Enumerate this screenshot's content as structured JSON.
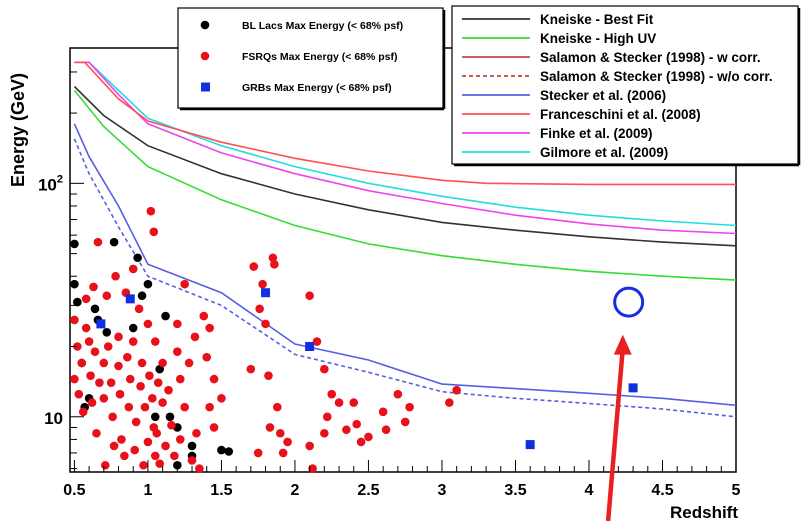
{
  "chart_data": {
    "type": "scatter",
    "xlabel": "Redshift",
    "ylabel": "Energy (GeV)",
    "xlim": [
      0.47,
      5.0
    ],
    "ylim": [
      5.8,
      380
    ],
    "y_scale": "log",
    "x_ticks": [
      "0.5",
      "1",
      "1.5",
      "2",
      "2.5",
      "3",
      "3.5",
      "4",
      "4.5",
      "5"
    ],
    "x_tick_values": [
      0.5,
      1,
      1.5,
      2,
      2.5,
      3,
      3.5,
      4,
      4.5,
      5
    ],
    "y_ticks": [
      {
        "value": 10,
        "base": "10",
        "exp": ""
      },
      {
        "value": 100,
        "base": "10",
        "exp": "2"
      }
    ],
    "point_legend": {
      "placement": "top-left",
      "entries": [
        {
          "label": "BL Lacs Max Energy (< 68% psf)",
          "marker": "circle",
          "color": "#000000"
        },
        {
          "label": "FSRQs Max Energy (< 68% psf)",
          "marker": "circle",
          "color": "#e8101a"
        },
        {
          "label": "GRBs Max Energy (< 68% psf)",
          "marker": "square",
          "color": "#1030e0"
        }
      ]
    },
    "line_legend": {
      "placement": "top-right",
      "entries": [
        {
          "label": "Kneiske - Best Fit",
          "color": "#333333",
          "dash": "solid"
        },
        {
          "label": "Kneiske - High UV",
          "color": "#33dd33",
          "dash": "solid"
        },
        {
          "label": "Salamon & Stecker (1998) - w corr.",
          "color": "#c04848",
          "dash": "solid"
        },
        {
          "label": "Salamon & Stecker (1998) - w/o corr.",
          "color": "#c04848",
          "dash": "dashed"
        },
        {
          "label": "Stecker et al. (2006)",
          "color": "#5560e0",
          "dash": "solid"
        },
        {
          "label": "Franceschini et al. (2008)",
          "color": "#ff5050",
          "dash": "solid"
        },
        {
          "label": "Finke et al. (2009)",
          "color": "#ee44ee",
          "dash": "solid"
        },
        {
          "label": "Gilmore et al. (2009)",
          "color": "#22dddd",
          "dash": "solid"
        }
      ]
    },
    "curves": [
      {
        "color": "#22dddd",
        "dash": "solid",
        "points": [
          [
            0.5,
            330
          ],
          [
            0.6,
            330
          ],
          [
            0.8,
            250
          ],
          [
            1.0,
            190
          ],
          [
            1.5,
            145
          ],
          [
            2.0,
            118
          ],
          [
            2.5,
            100
          ],
          [
            3.0,
            88
          ],
          [
            3.5,
            79
          ],
          [
            4.0,
            73
          ],
          [
            4.5,
            69
          ],
          [
            5.0,
            66
          ]
        ]
      },
      {
        "color": "#ee44ee",
        "dash": "solid",
        "points": [
          [
            0.5,
            330
          ],
          [
            0.6,
            330
          ],
          [
            0.8,
            240
          ],
          [
            1.0,
            180
          ],
          [
            1.5,
            135
          ],
          [
            2.0,
            110
          ],
          [
            2.5,
            93
          ],
          [
            3.0,
            82
          ],
          [
            3.5,
            73
          ],
          [
            4.0,
            67
          ],
          [
            4.5,
            63
          ],
          [
            5.0,
            61
          ]
        ]
      },
      {
        "color": "#ff5050",
        "dash": "solid",
        "points": [
          [
            0.5,
            330
          ],
          [
            0.57,
            330
          ],
          [
            0.8,
            230
          ],
          [
            1.0,
            185
          ],
          [
            1.5,
            150
          ],
          [
            2.0,
            128
          ],
          [
            2.5,
            113
          ],
          [
            3.0,
            103
          ],
          [
            3.3,
            100
          ],
          [
            4.0,
            99
          ],
          [
            5.0,
            99
          ]
        ]
      },
      {
        "color": "#333333",
        "dash": "solid",
        "points": [
          [
            0.5,
            260
          ],
          [
            0.7,
            195
          ],
          [
            1.0,
            145
          ],
          [
            1.5,
            110
          ],
          [
            2.0,
            90
          ],
          [
            2.5,
            77
          ],
          [
            3.0,
            68
          ],
          [
            3.5,
            63
          ],
          [
            4.0,
            59
          ],
          [
            4.5,
            56
          ],
          [
            5.0,
            54
          ]
        ]
      },
      {
        "color": "#33dd33",
        "dash": "solid",
        "points": [
          [
            0.5,
            250
          ],
          [
            0.7,
            175
          ],
          [
            1.0,
            118
          ],
          [
            1.5,
            85
          ],
          [
            2.0,
            66
          ],
          [
            2.5,
            55
          ],
          [
            3.0,
            49
          ],
          [
            3.5,
            45
          ],
          [
            4.0,
            42
          ],
          [
            4.5,
            40
          ],
          [
            5.0,
            38.5
          ]
        ]
      },
      {
        "color": "#5560e0",
        "dash": "solid",
        "points": [
          [
            0.5,
            180
          ],
          [
            0.6,
            130
          ],
          [
            0.8,
            80
          ],
          [
            1.0,
            45
          ],
          [
            1.5,
            34
          ],
          [
            2.0,
            20.5
          ],
          [
            2.5,
            17.5
          ],
          [
            3.0,
            13.8
          ],
          [
            3.5,
            13.2
          ],
          [
            4.0,
            12.6
          ],
          [
            4.5,
            12
          ],
          [
            5.0,
            11.2
          ]
        ]
      },
      {
        "color": "#5560e0",
        "dash": "dashed",
        "points": [
          [
            0.5,
            155
          ],
          [
            0.6,
            110
          ],
          [
            0.8,
            65
          ],
          [
            1.0,
            40
          ],
          [
            1.5,
            30
          ],
          [
            2.0,
            18.5
          ],
          [
            2.5,
            15.5
          ],
          [
            3.0,
            12.8
          ],
          [
            3.5,
            12
          ],
          [
            4.0,
            11.4
          ],
          [
            4.5,
            10.8
          ],
          [
            5.0,
            10
          ]
        ]
      }
    ],
    "series": [
      {
        "name": "BL Lacs Max Energy (< 68% psf)",
        "marker": "circle",
        "color": "#000000",
        "points": [
          [
            0.5,
            55
          ],
          [
            0.5,
            37
          ],
          [
            0.52,
            31
          ],
          [
            0.55,
            17
          ],
          [
            0.57,
            11
          ],
          [
            0.6,
            12
          ],
          [
            0.64,
            29
          ],
          [
            0.66,
            26
          ],
          [
            0.72,
            23
          ],
          [
            0.77,
            56
          ],
          [
            0.9,
            24
          ],
          [
            0.93,
            48
          ],
          [
            0.96,
            33
          ],
          [
            1.0,
            37
          ],
          [
            1.05,
            10
          ],
          [
            1.08,
            16
          ],
          [
            1.12,
            27
          ],
          [
            1.15,
            10
          ],
          [
            1.2,
            9
          ],
          [
            1.3,
            7.5
          ],
          [
            1.3,
            6.8
          ],
          [
            1.5,
            7.2
          ],
          [
            1.55,
            7.1
          ],
          [
            1.2,
            6.2
          ]
        ]
      },
      {
        "name": "FSRQs Max Energy (< 68% psf)",
        "marker": "circle",
        "color": "#e8101a",
        "points": [
          [
            0.5,
            26
          ],
          [
            0.5,
            14.5
          ],
          [
            0.52,
            20
          ],
          [
            0.53,
            12.5
          ],
          [
            0.55,
            17
          ],
          [
            0.56,
            10.5
          ],
          [
            0.58,
            32
          ],
          [
            0.58,
            24
          ],
          [
            0.6,
            21
          ],
          [
            0.61,
            15
          ],
          [
            0.62,
            11.5
          ],
          [
            0.63,
            36
          ],
          [
            0.64,
            19
          ],
          [
            0.65,
            8.5
          ],
          [
            0.66,
            56
          ],
          [
            0.67,
            14
          ],
          [
            0.68,
            25
          ],
          [
            0.7,
            17
          ],
          [
            0.7,
            12
          ],
          [
            0.71,
            6.2
          ],
          [
            0.72,
            33
          ],
          [
            0.73,
            20
          ],
          [
            0.75,
            14
          ],
          [
            0.76,
            10
          ],
          [
            0.77,
            7.5
          ],
          [
            0.78,
            40
          ],
          [
            0.8,
            22
          ],
          [
            0.8,
            16.5
          ],
          [
            0.81,
            12.5
          ],
          [
            0.82,
            8
          ],
          [
            0.84,
            6.8
          ],
          [
            0.85,
            34
          ],
          [
            0.86,
            18
          ],
          [
            0.87,
            11
          ],
          [
            0.88,
            14.5
          ],
          [
            0.9,
            43
          ],
          [
            0.9,
            21
          ],
          [
            0.91,
            7.2
          ],
          [
            0.92,
            9.5
          ],
          [
            0.94,
            29
          ],
          [
            0.95,
            13.5
          ],
          [
            0.96,
            17
          ],
          [
            0.97,
            6.2
          ],
          [
            0.98,
            11
          ],
          [
            1.0,
            25
          ],
          [
            1.0,
            7.8
          ],
          [
            1.01,
            15
          ],
          [
            1.02,
            76
          ],
          [
            1.03,
            12
          ],
          [
            1.04,
            62
          ],
          [
            1.04,
            9
          ],
          [
            1.05,
            21
          ],
          [
            1.05,
            6.8
          ],
          [
            1.06,
            8.5
          ],
          [
            1.07,
            14
          ],
          [
            1.08,
            6.3
          ],
          [
            1.1,
            17
          ],
          [
            1.1,
            11.5
          ],
          [
            1.12,
            7.5
          ],
          [
            1.14,
            13
          ],
          [
            1.16,
            9.2
          ],
          [
            1.18,
            6.8
          ],
          [
            1.2,
            25
          ],
          [
            1.2,
            19
          ],
          [
            1.22,
            14.5
          ],
          [
            1.22,
            8
          ],
          [
            1.25,
            37
          ],
          [
            1.25,
            11
          ],
          [
            1.28,
            17
          ],
          [
            1.3,
            6.5
          ],
          [
            1.32,
            22
          ],
          [
            1.33,
            8.5
          ],
          [
            1.35,
            6
          ],
          [
            1.38,
            27
          ],
          [
            1.4,
            18
          ],
          [
            1.42,
            24
          ],
          [
            1.42,
            11
          ],
          [
            1.45,
            14.5
          ],
          [
            1.45,
            9
          ],
          [
            1.5,
            12
          ],
          [
            1.7,
            16
          ],
          [
            1.72,
            44
          ],
          [
            1.75,
            7
          ],
          [
            1.76,
            29
          ],
          [
            1.78,
            37
          ],
          [
            1.8,
            25
          ],
          [
            1.82,
            15
          ],
          [
            1.83,
            9
          ],
          [
            1.85,
            48
          ],
          [
            1.86,
            45
          ],
          [
            1.88,
            11
          ],
          [
            1.9,
            8.5
          ],
          [
            1.92,
            7
          ],
          [
            1.95,
            7.8
          ],
          [
            2.1,
            33
          ],
          [
            2.1,
            7.5
          ],
          [
            2.12,
            6
          ],
          [
            2.15,
            21
          ],
          [
            2.2,
            8.5
          ],
          [
            2.2,
            16
          ],
          [
            2.22,
            10
          ],
          [
            2.25,
            12.5
          ],
          [
            2.3,
            11.5
          ],
          [
            2.35,
            8.8
          ],
          [
            2.4,
            11.5
          ],
          [
            2.42,
            9.3
          ],
          [
            2.45,
            7.8
          ],
          [
            2.5,
            8.2
          ],
          [
            2.6,
            10.5
          ],
          [
            2.62,
            8.8
          ],
          [
            2.7,
            12.5
          ],
          [
            2.75,
            9.5
          ],
          [
            2.78,
            11
          ],
          [
            3.05,
            11.5
          ],
          [
            3.1,
            13
          ]
        ]
      },
      {
        "name": "GRBs Max Energy (< 68% psf)",
        "marker": "square",
        "color": "#1030e0",
        "points": [
          [
            0.68,
            25
          ],
          [
            0.88,
            32
          ],
          [
            1.8,
            34
          ],
          [
            2.1,
            20
          ],
          [
            3.6,
            7.6
          ],
          [
            4.3,
            13.3
          ]
        ]
      }
    ],
    "annotations": [
      {
        "type": "circle",
        "x": 4.27,
        "y": 31,
        "color": "#1a2ae6"
      },
      {
        "type": "arrow",
        "color": "#e82020",
        "from": [
          4.13,
          2.6
        ],
        "to": [
          4.23,
          22.5
        ]
      }
    ]
  }
}
